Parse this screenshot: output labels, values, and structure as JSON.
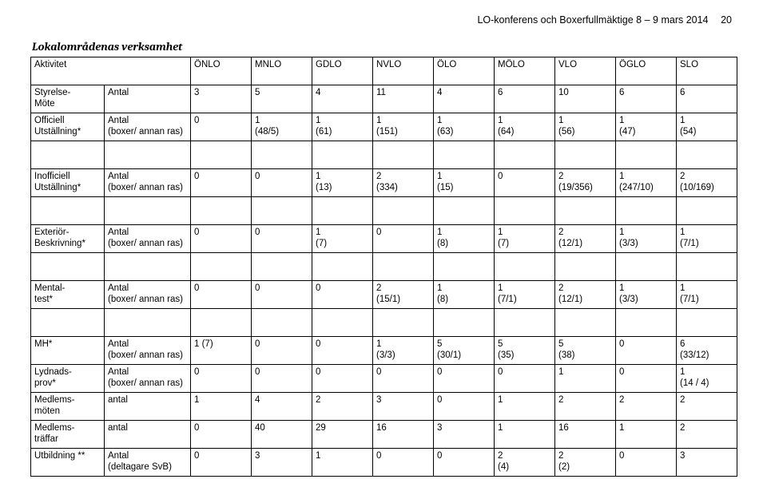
{
  "header_text": "LO-konferens och Boxerfullmäktige 8 – 9 mars 2014",
  "page_number": "20",
  "section_title": "Lokalområdenas verksamhet",
  "columns": {
    "activity_label": "Aktivitet",
    "areas": [
      "ÖNLO",
      "MNLO",
      "GDLO",
      "NVLO",
      "ÖLO",
      "MÖLO",
      "VLO",
      "ÖGLO",
      "SLO"
    ]
  },
  "rows": [
    {
      "activity": "Styrelse-\nMöte",
      "measure": "Antal",
      "values": [
        "3",
        "5",
        "4",
        "11",
        "4",
        "6",
        "10",
        "6",
        "6"
      ]
    },
    {
      "activity": "Officiell\nUtställning*",
      "measure": "Antal\n(boxer/ annan ras)",
      "values": [
        "0",
        "1\n(48/5)",
        "1\n(61)",
        "1\n(151)",
        "1\n(63)",
        "1\n(64)",
        "1\n(56)",
        "1\n(47)",
        "1\n(54)"
      ]
    },
    {
      "spacer": true
    },
    {
      "activity": "Inofficiell\nUtställning*",
      "measure": "Antal\n(boxer/ annan ras)",
      "values": [
        "0",
        "0",
        "1\n(13)",
        "2\n(334)",
        "1\n(15)",
        "0",
        "2\n(19/356)",
        "1\n(247/10)",
        "2\n(10/169)"
      ]
    },
    {
      "spacer": true
    },
    {
      "activity": "Exteriör-\nBeskrivning*",
      "measure": "Antal\n(boxer/ annan ras)",
      "values": [
        "0",
        "0",
        "1\n(7)",
        "0",
        "1\n(8)",
        "1\n(7)",
        "2\n(12/1)",
        "1\n(3/3)",
        "1\n(7/1)"
      ]
    },
    {
      "spacer": true
    },
    {
      "activity": "Mental-\ntest*",
      "measure": "Antal\n(boxer/ annan ras)",
      "values": [
        "0",
        "0",
        "0",
        "2\n(15/1)",
        "1\n(8)",
        "1\n(7/1)",
        "2\n(12/1)",
        "1\n(3/3)",
        "1\n(7/1)"
      ]
    },
    {
      "spacer": true
    },
    {
      "activity": "MH*",
      "measure": "Antal\n(boxer/ annan ras)",
      "values": [
        "1 (7)",
        "0",
        "0",
        "1\n(3/3)",
        "5\n(30/1)",
        "5\n(35)",
        "5\n(38)",
        "0",
        "6\n(33/12)"
      ]
    },
    {
      "activity": "Lydnads-\nprov*",
      "measure": "Antal\n(boxer/ annan ras)",
      "values": [
        "0",
        "0",
        "0",
        "0",
        "0",
        "0",
        "1",
        "0",
        "1\n(14 / 4)"
      ]
    },
    {
      "activity": "Medlems-\nmöten",
      "measure": "antal",
      "values": [
        "1",
        "4",
        "2",
        "3",
        "0",
        "1",
        "2",
        "2",
        "2"
      ]
    },
    {
      "activity": "Medlems-\nträffar",
      "measure": "antal",
      "values": [
        "0",
        "40",
        "29",
        "16",
        "3",
        "1",
        "16",
        "1",
        "2"
      ]
    },
    {
      "activity": "Utbildning **",
      "measure": "Antal\n(deltagare SvB)",
      "values": [
        "0",
        "3",
        "1",
        "0",
        "0",
        "2\n(4)",
        "2\n(2)",
        "0",
        "3"
      ]
    }
  ]
}
